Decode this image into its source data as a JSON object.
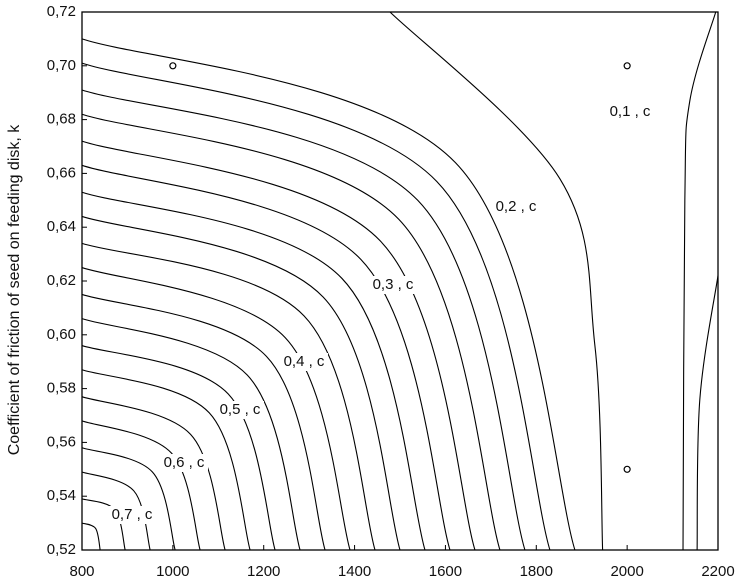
{
  "chart_data": {
    "type": "contour",
    "y_label": "Coefficient of friction of seed on feeding disk, k",
    "xlim": [
      800,
      2200
    ],
    "ylim": [
      0.52,
      0.72
    ],
    "xticks": [
      800,
      1000,
      1200,
      1400,
      1600,
      1800,
      2000,
      2200
    ],
    "yticks": [
      {
        "value": 0.52,
        "label": "0,52"
      },
      {
        "value": 0.54,
        "label": "0,54"
      },
      {
        "value": 0.56,
        "label": "0,56"
      },
      {
        "value": 0.58,
        "label": "0,58"
      },
      {
        "value": 0.6,
        "label": "0,60"
      },
      {
        "value": 0.62,
        "label": "0,62"
      },
      {
        "value": 0.64,
        "label": "0,64"
      },
      {
        "value": 0.66,
        "label": "0,66"
      },
      {
        "value": 0.68,
        "label": "0,68"
      },
      {
        "value": 0.7,
        "label": "0,70"
      },
      {
        "value": 0.72,
        "label": "0,72"
      }
    ],
    "color": "#000000",
    "contours": [
      {
        "x": [
          1478,
          1852,
          1929,
          1946
        ],
        "y": [
          0.72,
          0.658,
          0.596,
          0.52
        ]
      },
      {
        "x": [
          800,
          1622,
          1885
        ],
        "y": [
          0.71,
          0.664,
          0.52
        ]
      },
      {
        "x": [
          800,
          1581,
          1830
        ],
        "y": [
          0.701,
          0.657,
          0.52
        ]
      },
      {
        "x": [
          800,
          1539,
          1775
        ],
        "y": [
          0.691,
          0.65,
          0.52
        ]
      },
      {
        "x": [
          800,
          1497,
          1720
        ],
        "y": [
          0.682,
          0.643,
          0.52
        ]
      },
      {
        "x": [
          800,
          1456,
          1665
        ],
        "y": [
          0.672,
          0.635,
          0.52
        ]
      },
      {
        "x": [
          800,
          1414,
          1610
        ],
        "y": [
          0.663,
          0.628,
          0.52
        ]
      },
      {
        "x": [
          800,
          1372,
          1555
        ],
        "y": [
          0.653,
          0.621,
          0.52
        ]
      },
      {
        "x": [
          800,
          1331,
          1500
        ],
        "y": [
          0.644,
          0.614,
          0.52
        ]
      },
      {
        "x": [
          800,
          1289,
          1445
        ],
        "y": [
          0.634,
          0.607,
          0.52
        ]
      },
      {
        "x": [
          800,
          1247,
          1390
        ],
        "y": [
          0.625,
          0.599,
          0.52
        ]
      },
      {
        "x": [
          800,
          1206,
          1335
        ],
        "y": [
          0.615,
          0.592,
          0.52
        ]
      },
      {
        "x": [
          800,
          1164,
          1280
        ],
        "y": [
          0.606,
          0.585,
          0.52
        ]
      },
      {
        "x": [
          800,
          1122,
          1225
        ],
        "y": [
          0.596,
          0.578,
          0.52
        ]
      },
      {
        "x": [
          800,
          1080,
          1170
        ],
        "y": [
          0.587,
          0.571,
          0.52
        ]
      },
      {
        "x": [
          800,
          1039,
          1115
        ],
        "y": [
          0.577,
          0.563,
          0.52
        ]
      },
      {
        "x": [
          800,
          997,
          1060
        ],
        "y": [
          0.568,
          0.556,
          0.52
        ]
      },
      {
        "x": [
          800,
          955,
          1005
        ],
        "y": [
          0.558,
          0.549,
          0.52
        ]
      },
      {
        "x": [
          800,
          914,
          950
        ],
        "y": [
          0.549,
          0.542,
          0.52
        ]
      },
      {
        "x": [
          800,
          872,
          895
        ],
        "y": [
          0.539,
          0.535,
          0.52
        ]
      },
      {
        "x": [
          800,
          830,
          840
        ],
        "y": [
          0.53,
          0.528,
          0.52
        ]
      },
      {
        "x": [
          2195,
          2138,
          2127,
          2123
        ],
        "y": [
          0.72,
          0.687,
          0.65,
          0.52
        ]
      },
      {
        "x": [
          2200,
          2160,
          2154
        ],
        "y": [
          0.622,
          0.576,
          0.52
        ]
      }
    ],
    "contour_labels": [
      "0,1 , c",
      "0,2 , c",
      "0,3 , c",
      "0,4 , c",
      "0,5 , c",
      "0,6 , c",
      "0,7 , c"
    ],
    "points": {
      "x": [
        1000,
        2000,
        2000
      ],
      "y": [
        0.7,
        0.7,
        0.55
      ]
    }
  }
}
